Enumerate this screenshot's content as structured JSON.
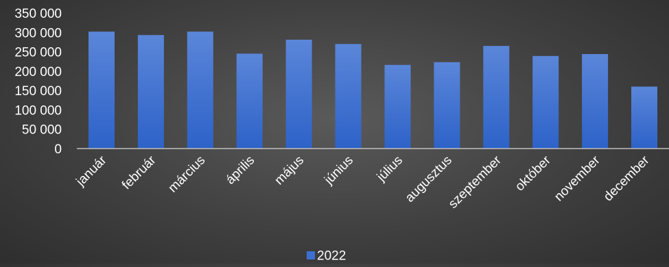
{
  "chart_data": {
    "type": "bar",
    "categories": [
      "január",
      "február",
      "március",
      "április",
      "május",
      "június",
      "július",
      "augusztus",
      "szeptember",
      "október",
      "november",
      "december"
    ],
    "series": [
      {
        "name": "2022",
        "values": [
          302000,
          293000,
          302000,
          245000,
          281000,
          270000,
          216000,
          223000,
          265000,
          239000,
          244000,
          160000
        ]
      }
    ],
    "y_ticks": [
      "0",
      "50 000",
      "100 000",
      "150 000",
      "200 000",
      "250 000",
      "300 000",
      "350 000"
    ],
    "ylim": [
      0,
      350000
    ],
    "grid": false,
    "legend_position": "bottom",
    "colors": {
      "bar_top": "#5b86d9",
      "bar_bottom": "#2d62c8",
      "text": "#ffffff",
      "axis": "#bfbfbf"
    }
  }
}
